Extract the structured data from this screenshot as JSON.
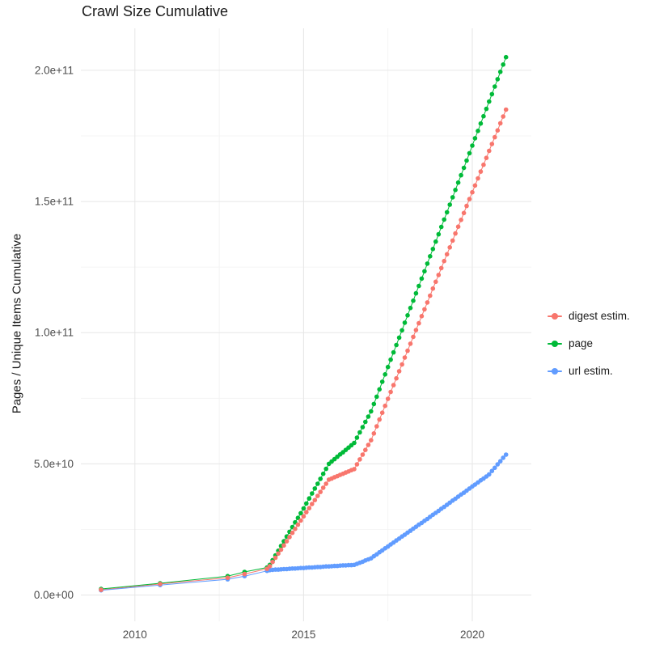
{
  "title": "Crawl Size Cumulative",
  "y_axis_label": "Pages / Unique Items Cumulative",
  "colors": {
    "background": "#ffffff",
    "grid_major": "#e6e6e6",
    "grid_minor": "#f2f2f2",
    "tick_label": "#4d4d4d",
    "title_text": "#1a1a1a",
    "axis_title_text": "#1a1a1a",
    "legend_text": "#1a1a1a"
  },
  "chart_data": {
    "type": "line",
    "show_points": true,
    "grid": true,
    "legend_position": "right",
    "x_domain": [
      2008.4,
      2021.75
    ],
    "y_domain": [
      -10000000000.0,
      216000000000.0
    ],
    "y_value_unit": 1000000000.0,
    "x_ticks": [
      {
        "value": 2010,
        "label": "2010"
      },
      {
        "value": 2015,
        "label": "2015"
      },
      {
        "value": 2020,
        "label": "2020"
      }
    ],
    "y_ticks": [
      {
        "value": 0,
        "label": "0.0e+00"
      },
      {
        "value": 50000000000.0,
        "label": "5.0e+10"
      },
      {
        "value": 100000000000.0,
        "label": "1.0e+11"
      },
      {
        "value": 150000000000.0,
        "label": "1.5e+11"
      },
      {
        "value": 200000000000.0,
        "label": "2.0e+11"
      }
    ],
    "x_minor_ticks": [
      2012.5,
      2017.5
    ],
    "y_minor_ticks": [
      25000000000.0,
      75000000000.0,
      125000000000.0,
      175000000000.0
    ],
    "draw_order": [
      1,
      2,
      0
    ],
    "series": [
      {
        "name": "digest estim.",
        "color": "#F8766D",
        "points": [
          [
            2009.0,
            2.0
          ],
          [
            2010.75,
            4.2
          ],
          [
            2012.75,
            6.6
          ],
          [
            2013.25,
            8.0
          ],
          [
            2013.917,
            10.0
          ],
          [
            2014.0,
            11.0
          ],
          [
            2014.083,
            12.6
          ],
          [
            2014.167,
            14.2
          ],
          [
            2014.25,
            15.8
          ],
          [
            2014.333,
            17.3
          ],
          [
            2014.417,
            18.9
          ],
          [
            2014.5,
            20.5
          ],
          [
            2014.583,
            22.1
          ],
          [
            2014.667,
            23.7
          ],
          [
            2014.75,
            25.2
          ],
          [
            2014.833,
            26.8
          ],
          [
            2014.917,
            28.4
          ],
          [
            2015.0,
            30.0
          ],
          [
            2015.083,
            31.6
          ],
          [
            2015.167,
            33.1
          ],
          [
            2015.25,
            34.7
          ],
          [
            2015.333,
            36.2
          ],
          [
            2015.417,
            37.8
          ],
          [
            2015.5,
            39.3
          ],
          [
            2015.583,
            40.9
          ],
          [
            2015.667,
            42.4
          ],
          [
            2015.75,
            44.0
          ],
          [
            2015.833,
            44.4
          ],
          [
            2015.917,
            44.9
          ],
          [
            2016.0,
            45.3
          ],
          [
            2016.083,
            45.8
          ],
          [
            2016.167,
            46.2
          ],
          [
            2016.25,
            46.7
          ],
          [
            2016.333,
            47.1
          ],
          [
            2016.417,
            47.6
          ],
          [
            2016.5,
            48.0
          ],
          [
            2016.583,
            49.8
          ],
          [
            2016.667,
            51.7
          ],
          [
            2016.75,
            53.5
          ],
          [
            2016.833,
            55.3
          ],
          [
            2016.917,
            57.2
          ],
          [
            2017.0,
            59.0
          ],
          [
            2017.083,
            61.6
          ],
          [
            2017.167,
            64.3
          ],
          [
            2017.25,
            66.9
          ],
          [
            2017.333,
            69.5
          ],
          [
            2017.417,
            72.1
          ],
          [
            2017.5,
            74.8
          ],
          [
            2017.583,
            77.4
          ],
          [
            2017.667,
            80.0
          ],
          [
            2017.75,
            82.6
          ],
          [
            2017.833,
            85.3
          ],
          [
            2017.917,
            87.9
          ],
          [
            2018.0,
            90.5
          ],
          [
            2018.083,
            93.1
          ],
          [
            2018.167,
            95.8
          ],
          [
            2018.25,
            98.4
          ],
          [
            2018.333,
            101.0
          ],
          [
            2018.417,
            103.6
          ],
          [
            2018.5,
            106.3
          ],
          [
            2018.583,
            108.9
          ],
          [
            2018.667,
            111.5
          ],
          [
            2018.75,
            114.1
          ],
          [
            2018.833,
            116.8
          ],
          [
            2018.917,
            119.4
          ],
          [
            2019.0,
            122.0
          ],
          [
            2019.083,
            124.6
          ],
          [
            2019.167,
            127.3
          ],
          [
            2019.25,
            129.9
          ],
          [
            2019.333,
            132.5
          ],
          [
            2019.417,
            135.1
          ],
          [
            2019.5,
            137.8
          ],
          [
            2019.583,
            140.4
          ],
          [
            2019.667,
            143.0
          ],
          [
            2019.75,
            145.6
          ],
          [
            2019.833,
            148.3
          ],
          [
            2019.917,
            150.9
          ],
          [
            2020.0,
            153.5
          ],
          [
            2020.083,
            156.1
          ],
          [
            2020.167,
            158.8
          ],
          [
            2020.25,
            161.4
          ],
          [
            2020.333,
            164.0
          ],
          [
            2020.417,
            166.6
          ],
          [
            2020.5,
            169.3
          ],
          [
            2020.583,
            171.9
          ],
          [
            2020.667,
            174.5
          ],
          [
            2020.75,
            177.1
          ],
          [
            2020.833,
            179.8
          ],
          [
            2020.917,
            182.4
          ],
          [
            2021.0,
            185.0
          ]
        ]
      },
      {
        "name": "page",
        "color": "#00BA38",
        "points": [
          [
            2009.0,
            2.3
          ],
          [
            2010.75,
            4.5
          ],
          [
            2012.75,
            7.2
          ],
          [
            2013.25,
            8.8
          ],
          [
            2013.917,
            10.5
          ],
          [
            2014.0,
            11.5
          ],
          [
            2014.083,
            13.3
          ],
          [
            2014.167,
            15.1
          ],
          [
            2014.25,
            16.9
          ],
          [
            2014.333,
            18.7
          ],
          [
            2014.417,
            20.5
          ],
          [
            2014.5,
            22.3
          ],
          [
            2014.583,
            24.1
          ],
          [
            2014.667,
            25.9
          ],
          [
            2014.75,
            27.7
          ],
          [
            2014.833,
            29.4
          ],
          [
            2014.917,
            31.2
          ],
          [
            2015.0,
            33.0
          ],
          [
            2015.083,
            34.9
          ],
          [
            2015.167,
            36.8
          ],
          [
            2015.25,
            38.7
          ],
          [
            2015.333,
            40.6
          ],
          [
            2015.417,
            42.4
          ],
          [
            2015.5,
            44.3
          ],
          [
            2015.583,
            46.2
          ],
          [
            2015.667,
            48.1
          ],
          [
            2015.75,
            50.0
          ],
          [
            2015.833,
            50.9
          ],
          [
            2015.917,
            51.8
          ],
          [
            2016.0,
            52.7
          ],
          [
            2016.083,
            53.6
          ],
          [
            2016.167,
            54.4
          ],
          [
            2016.25,
            55.3
          ],
          [
            2016.333,
            56.2
          ],
          [
            2016.417,
            57.1
          ],
          [
            2016.5,
            58.0
          ],
          [
            2016.583,
            60.0
          ],
          [
            2016.667,
            62.0
          ],
          [
            2016.75,
            64.0
          ],
          [
            2016.833,
            66.0
          ],
          [
            2016.917,
            68.0
          ],
          [
            2017.0,
            70.0
          ],
          [
            2017.083,
            72.8
          ],
          [
            2017.167,
            75.6
          ],
          [
            2017.25,
            78.4
          ],
          [
            2017.333,
            81.3
          ],
          [
            2017.417,
            84.1
          ],
          [
            2017.5,
            86.9
          ],
          [
            2017.583,
            89.7
          ],
          [
            2017.667,
            92.5
          ],
          [
            2017.75,
            95.3
          ],
          [
            2017.833,
            98.1
          ],
          [
            2017.917,
            100.9
          ],
          [
            2018.0,
            103.8
          ],
          [
            2018.083,
            106.6
          ],
          [
            2018.167,
            109.4
          ],
          [
            2018.25,
            112.2
          ],
          [
            2018.333,
            115.0
          ],
          [
            2018.417,
            117.8
          ],
          [
            2018.5,
            120.6
          ],
          [
            2018.583,
            123.4
          ],
          [
            2018.667,
            126.3
          ],
          [
            2018.75,
            129.1
          ],
          [
            2018.833,
            131.9
          ],
          [
            2018.917,
            134.7
          ],
          [
            2019.0,
            137.5
          ],
          [
            2019.083,
            140.3
          ],
          [
            2019.167,
            143.1
          ],
          [
            2019.25,
            145.9
          ],
          [
            2019.333,
            148.8
          ],
          [
            2019.417,
            151.6
          ],
          [
            2019.5,
            154.4
          ],
          [
            2019.583,
            157.2
          ],
          [
            2019.667,
            160.0
          ],
          [
            2019.75,
            162.8
          ],
          [
            2019.833,
            165.6
          ],
          [
            2019.917,
            168.4
          ],
          [
            2020.0,
            171.3
          ],
          [
            2020.083,
            174.1
          ],
          [
            2020.167,
            176.9
          ],
          [
            2020.25,
            179.7
          ],
          [
            2020.333,
            182.5
          ],
          [
            2020.417,
            185.3
          ],
          [
            2020.5,
            188.1
          ],
          [
            2020.583,
            190.9
          ],
          [
            2020.667,
            193.8
          ],
          [
            2020.75,
            196.6
          ],
          [
            2020.833,
            199.4
          ],
          [
            2020.917,
            202.2
          ],
          [
            2021.0,
            205.0
          ]
        ]
      },
      {
        "name": "url estim.",
        "color": "#619CFF",
        "points": [
          [
            2009.0,
            1.8
          ],
          [
            2010.75,
            3.8
          ],
          [
            2012.75,
            6.0
          ],
          [
            2013.25,
            7.2
          ],
          [
            2013.917,
            9.2
          ],
          [
            2014.0,
            9.5
          ],
          [
            2014.083,
            9.6
          ],
          [
            2014.167,
            9.7
          ],
          [
            2014.25,
            9.7
          ],
          [
            2014.333,
            9.8
          ],
          [
            2014.417,
            9.9
          ],
          [
            2014.5,
            9.9
          ],
          [
            2014.583,
            10.0
          ],
          [
            2014.667,
            10.1
          ],
          [
            2014.75,
            10.1
          ],
          [
            2014.833,
            10.2
          ],
          [
            2014.917,
            10.3
          ],
          [
            2015.0,
            10.3
          ],
          [
            2015.083,
            10.4
          ],
          [
            2015.167,
            10.5
          ],
          [
            2015.25,
            10.5
          ],
          [
            2015.333,
            10.6
          ],
          [
            2015.417,
            10.7
          ],
          [
            2015.5,
            10.7
          ],
          [
            2015.583,
            10.8
          ],
          [
            2015.667,
            10.9
          ],
          [
            2015.75,
            10.9
          ],
          [
            2015.833,
            11.0
          ],
          [
            2015.917,
            11.1
          ],
          [
            2016.0,
            11.1
          ],
          [
            2016.083,
            11.2
          ],
          [
            2016.167,
            11.3
          ],
          [
            2016.25,
            11.3
          ],
          [
            2016.333,
            11.4
          ],
          [
            2016.417,
            11.4
          ],
          [
            2016.5,
            11.5
          ],
          [
            2016.583,
            11.9
          ],
          [
            2016.667,
            12.3
          ],
          [
            2016.75,
            12.7
          ],
          [
            2016.833,
            13.2
          ],
          [
            2016.917,
            13.6
          ],
          [
            2017.0,
            14.0
          ],
          [
            2017.083,
            14.8
          ],
          [
            2017.167,
            15.5
          ],
          [
            2017.25,
            16.3
          ],
          [
            2017.333,
            17.0
          ],
          [
            2017.417,
            17.8
          ],
          [
            2017.5,
            18.5
          ],
          [
            2017.583,
            19.3
          ],
          [
            2017.667,
            20.0
          ],
          [
            2017.75,
            20.8
          ],
          [
            2017.833,
            21.5
          ],
          [
            2017.917,
            22.3
          ],
          [
            2018.0,
            23.0
          ],
          [
            2018.083,
            23.8
          ],
          [
            2018.167,
            24.5
          ],
          [
            2018.25,
            25.3
          ],
          [
            2018.333,
            26.0
          ],
          [
            2018.417,
            26.8
          ],
          [
            2018.5,
            27.5
          ],
          [
            2018.583,
            28.3
          ],
          [
            2018.667,
            29.0
          ],
          [
            2018.75,
            29.8
          ],
          [
            2018.833,
            30.6
          ],
          [
            2018.917,
            31.3
          ],
          [
            2019.0,
            32.1
          ],
          [
            2019.083,
            32.9
          ],
          [
            2019.167,
            33.6
          ],
          [
            2019.25,
            34.4
          ],
          [
            2019.333,
            35.2
          ],
          [
            2019.417,
            36.0
          ],
          [
            2019.5,
            36.7
          ],
          [
            2019.583,
            37.5
          ],
          [
            2019.667,
            38.3
          ],
          [
            2019.75,
            39.0
          ],
          [
            2019.833,
            39.8
          ],
          [
            2019.917,
            40.6
          ],
          [
            2020.0,
            41.4
          ],
          [
            2020.083,
            42.1
          ],
          [
            2020.167,
            42.9
          ],
          [
            2020.25,
            43.7
          ],
          [
            2020.333,
            44.4
          ],
          [
            2020.417,
            45.2
          ],
          [
            2020.5,
            46.0
          ],
          [
            2020.583,
            47.3
          ],
          [
            2020.667,
            48.5
          ],
          [
            2020.75,
            49.8
          ],
          [
            2020.833,
            51.0
          ],
          [
            2020.917,
            52.3
          ],
          [
            2021.0,
            53.5
          ]
        ]
      }
    ]
  }
}
